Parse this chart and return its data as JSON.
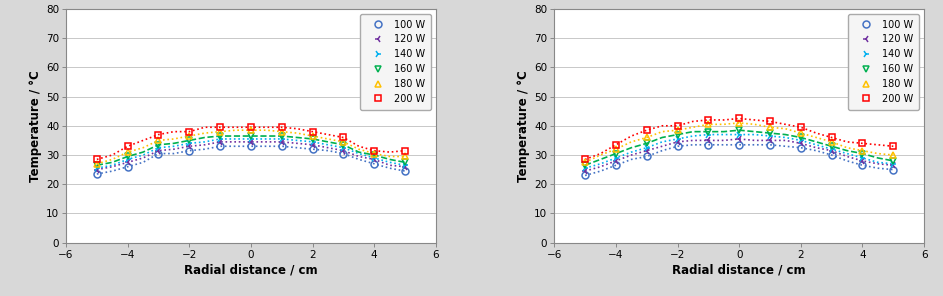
{
  "x_points": [
    -5,
    -4.5,
    -4,
    -3.5,
    -3,
    -2.5,
    -2,
    -1.5,
    -1,
    -0.5,
    0,
    0.5,
    1,
    1.5,
    2,
    2.5,
    3,
    3.5,
    4,
    4.5,
    5
  ],
  "xlim": [
    -6,
    6
  ],
  "ylim": [
    0,
    80
  ],
  "yticks": [
    0,
    10,
    20,
    30,
    40,
    50,
    60,
    70,
    80
  ],
  "xticks": [
    -6,
    -4,
    -2,
    0,
    2,
    4,
    6
  ],
  "xlabel": "Radial distance / cm",
  "ylabel": "Temperature / °C",
  "series": [
    {
      "label": "100 W",
      "color": "#4472c4",
      "linestyle": "dotted",
      "marker": "o",
      "left_data": [
        23.5,
        24.5,
        26.0,
        27.5,
        30.5,
        30.5,
        31.5,
        32.0,
        33.0,
        33.0,
        33.0,
        33.0,
        33.0,
        32.5,
        32.0,
        31.5,
        30.5,
        28.5,
        27.0,
        25.5,
        24.5
      ],
      "right_data": [
        23.0,
        24.5,
        26.5,
        28.5,
        29.5,
        31.5,
        33.0,
        33.5,
        33.5,
        33.5,
        33.5,
        33.5,
        33.5,
        33.0,
        32.5,
        31.5,
        30.0,
        28.0,
        26.5,
        25.5,
        25.0
      ]
    },
    {
      "label": "120 W",
      "color": "#7030a0",
      "linestyle": "dotted",
      "marker": "3",
      "left_data": [
        25.0,
        26.0,
        27.5,
        29.0,
        31.5,
        32.0,
        33.0,
        33.5,
        34.5,
        34.5,
        34.5,
        34.5,
        34.5,
        34.0,
        33.5,
        32.5,
        31.5,
        29.5,
        28.5,
        26.5,
        26.0
      ],
      "right_data": [
        24.5,
        26.0,
        28.0,
        30.0,
        31.5,
        33.0,
        34.5,
        35.0,
        35.0,
        35.0,
        35.5,
        35.0,
        35.0,
        35.0,
        34.0,
        32.5,
        31.5,
        29.5,
        28.0,
        27.0,
        26.5
      ]
    },
    {
      "label": "140 W",
      "color": "#00b0f0",
      "linestyle": "dotted",
      "marker": "4",
      "left_data": [
        25.5,
        26.5,
        28.5,
        30.0,
        32.5,
        33.0,
        34.0,
        34.5,
        35.5,
        35.5,
        35.5,
        35.5,
        35.5,
        35.0,
        34.5,
        33.5,
        32.5,
        30.5,
        29.0,
        27.5,
        26.5
      ],
      "right_data": [
        25.5,
        27.0,
        29.0,
        31.0,
        32.5,
        34.5,
        35.5,
        36.5,
        37.0,
        37.0,
        37.0,
        37.0,
        36.5,
        36.0,
        35.0,
        33.5,
        32.0,
        30.5,
        29.0,
        27.5,
        27.0
      ]
    },
    {
      "label": "160 W",
      "color": "#00b050",
      "linestyle": "dashed",
      "marker": "v",
      "left_data": [
        26.5,
        27.5,
        29.5,
        31.0,
        33.5,
        34.0,
        35.0,
        36.0,
        36.5,
        36.5,
        36.5,
        36.5,
        36.5,
        36.0,
        35.5,
        34.5,
        33.5,
        31.0,
        30.0,
        28.5,
        27.5
      ],
      "right_data": [
        26.5,
        28.5,
        30.5,
        32.5,
        34.0,
        36.0,
        37.0,
        38.0,
        38.0,
        38.0,
        38.5,
        38.0,
        37.5,
        37.0,
        36.0,
        34.5,
        33.0,
        31.5,
        30.5,
        29.0,
        28.0
      ]
    },
    {
      "label": "180 W",
      "color": "#ffc000",
      "linestyle": "dotted",
      "marker": "^",
      "left_data": [
        27.0,
        28.5,
        31.0,
        32.5,
        35.0,
        35.5,
        36.5,
        37.5,
        38.0,
        38.5,
        38.5,
        38.5,
        38.0,
        37.5,
        36.5,
        35.5,
        34.5,
        32.0,
        30.5,
        29.5,
        29.5
      ],
      "right_data": [
        27.5,
        30.0,
        32.0,
        34.5,
        36.0,
        38.0,
        38.5,
        39.5,
        40.5,
        40.5,
        41.0,
        40.5,
        39.5,
        39.0,
        37.5,
        36.0,
        34.5,
        32.5,
        31.5,
        30.5,
        30.0
      ]
    },
    {
      "label": "200 W",
      "color": "#ff0000",
      "linestyle": "dotted",
      "marker": "s",
      "left_data": [
        28.5,
        30.0,
        33.0,
        35.0,
        37.0,
        38.0,
        38.0,
        39.5,
        39.5,
        39.5,
        39.5,
        39.5,
        39.5,
        39.0,
        38.0,
        37.0,
        36.0,
        33.0,
        31.5,
        31.0,
        31.5
      ],
      "right_data": [
        28.5,
        30.5,
        33.5,
        36.5,
        38.5,
        40.0,
        40.0,
        41.5,
        42.0,
        42.0,
        42.5,
        42.0,
        41.5,
        40.5,
        39.5,
        37.5,
        36.0,
        34.5,
        34.0,
        33.5,
        33.0
      ]
    }
  ],
  "bg_color": "#d8d8d8",
  "plot_bg": "#ffffff"
}
